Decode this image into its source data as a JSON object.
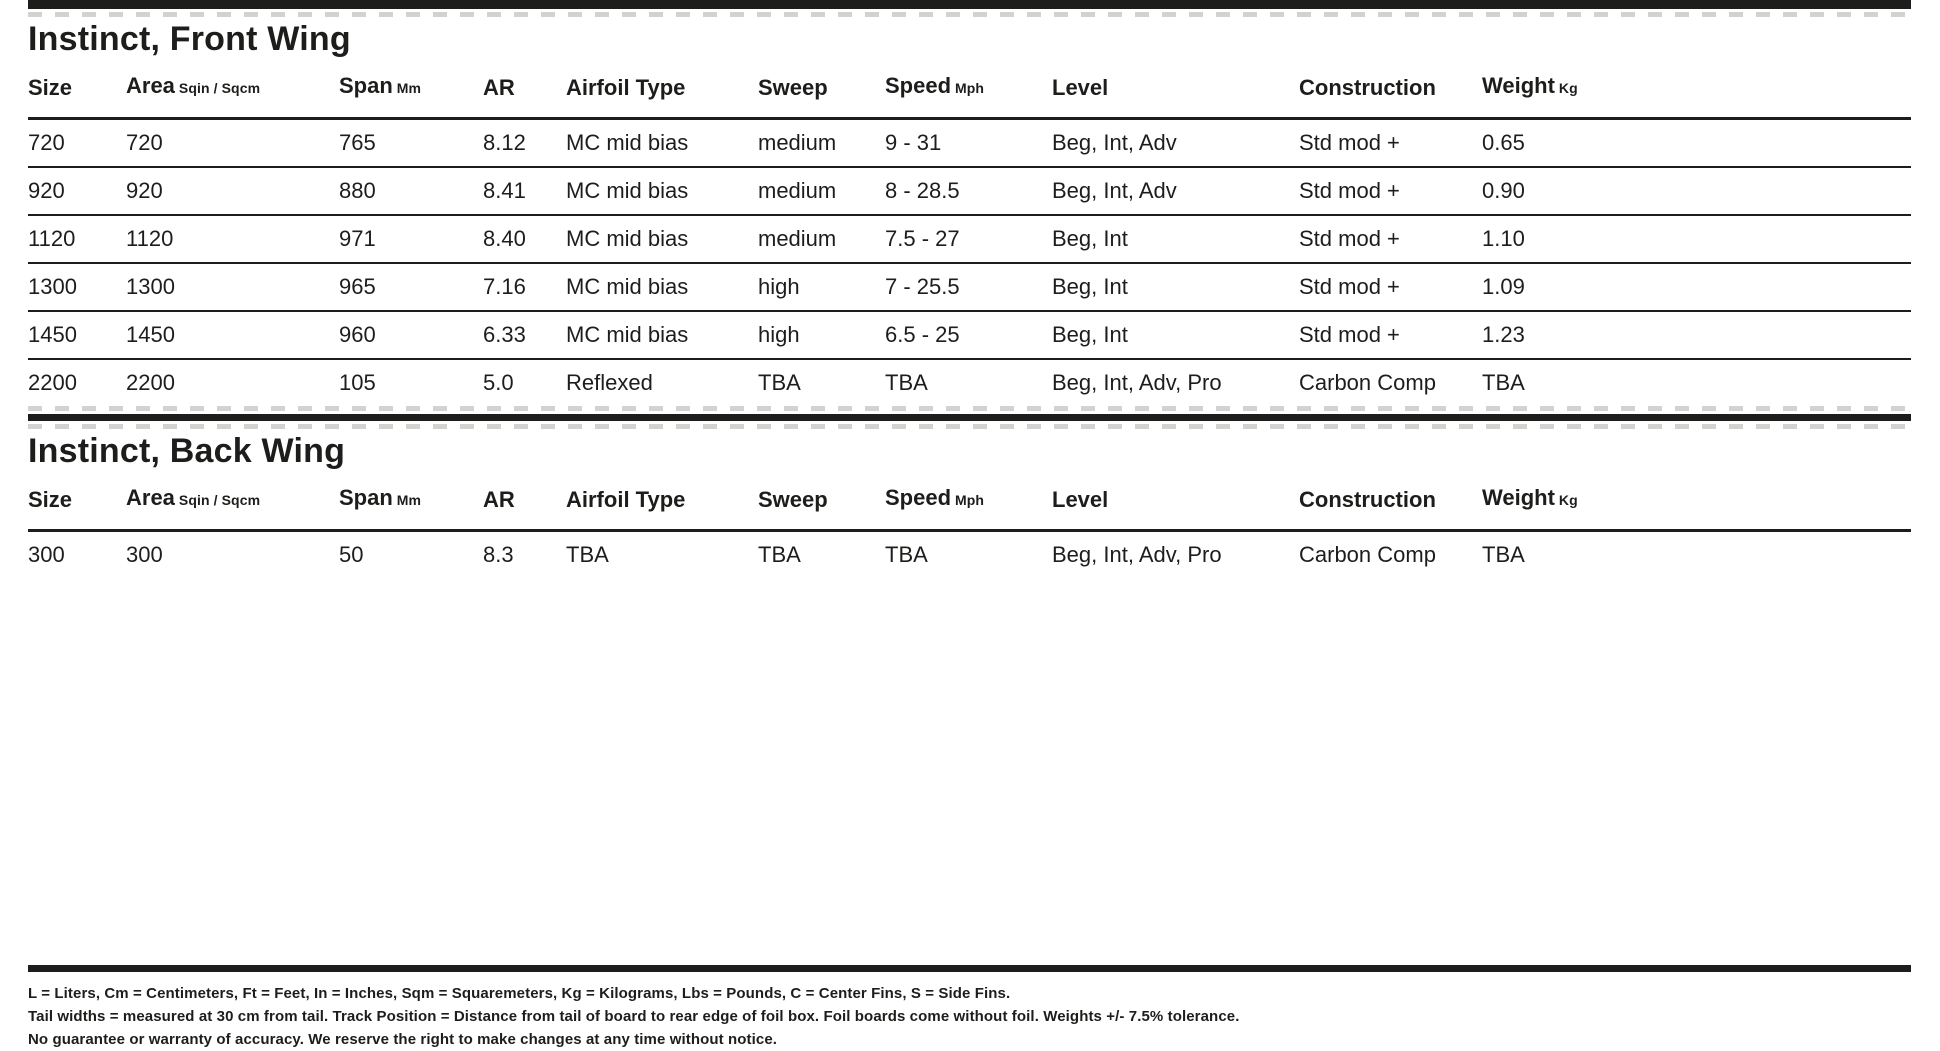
{
  "page": {
    "background": "#ffffff",
    "ink": "#1d1d1b"
  },
  "sections": [
    {
      "title": "Instinct, Front Wing",
      "columns": [
        {
          "label": "Size",
          "unit": ""
        },
        {
          "label": "Area",
          "unit": "Sqin / Sqcm"
        },
        {
          "label": "Span",
          "unit": "Mm"
        },
        {
          "label": "AR",
          "unit": ""
        },
        {
          "label": "Airfoil Type",
          "unit": ""
        },
        {
          "label": "Sweep",
          "unit": ""
        },
        {
          "label": "Speed",
          "unit": "Mph"
        },
        {
          "label": "Level",
          "unit": ""
        },
        {
          "label": "Construction",
          "unit": ""
        },
        {
          "label": "Weight",
          "unit": "Kg"
        }
      ],
      "rows": [
        [
          "720",
          "720",
          "765",
          "8.12",
          "MC mid bias",
          "medium",
          "9 - 31",
          "Beg, Int, Adv",
          "Std mod +",
          "0.65"
        ],
        [
          "920",
          "920",
          "880",
          "8.41",
          "MC mid bias",
          "medium",
          "8 - 28.5",
          "Beg, Int, Adv",
          "Std mod +",
          "0.90"
        ],
        [
          "1120",
          "1120",
          "971",
          "8.40",
          "MC mid bias",
          "medium",
          "7.5 - 27",
          "Beg, Int",
          "Std mod +",
          "1.10"
        ],
        [
          "1300",
          "1300",
          "965",
          "7.16",
          "MC mid bias",
          "high",
          "7 - 25.5",
          "Beg, Int",
          "Std mod +",
          "1.09"
        ],
        [
          "1450",
          "1450",
          "960",
          "6.33",
          "MC mid bias",
          "high",
          "6.5 - 25",
          "Beg, Int",
          "Std mod +",
          "1.23"
        ],
        [
          "2200",
          "2200",
          "105",
          "5.0",
          "Reflexed",
          "TBA",
          "TBA",
          "Beg, Int, Adv, Pro",
          "Carbon Comp",
          "TBA"
        ]
      ]
    },
    {
      "title": "Instinct, Back Wing",
      "columns": [
        {
          "label": "Size",
          "unit": ""
        },
        {
          "label": "Area",
          "unit": "Sqin / Sqcm"
        },
        {
          "label": "Span",
          "unit": "Mm"
        },
        {
          "label": "AR",
          "unit": ""
        },
        {
          "label": "Airfoil Type",
          "unit": ""
        },
        {
          "label": "Sweep",
          "unit": ""
        },
        {
          "label": "Speed",
          "unit": "Mph"
        },
        {
          "label": "Level",
          "unit": ""
        },
        {
          "label": "Construction",
          "unit": ""
        },
        {
          "label": "Weight",
          "unit": "Kg"
        }
      ],
      "rows": [
        [
          "300",
          "300",
          "50",
          "8.3",
          "TBA",
          "TBA",
          "TBA",
          "Beg, Int, Adv, Pro",
          "Carbon Comp",
          "TBA"
        ]
      ]
    }
  ],
  "footer": {
    "lines": [
      "L = Liters, Cm = Centimeters, Ft = Feet, In = Inches, Sqm = Squaremeters, Kg = Kilograms, Lbs = Pounds, C = Center Fins, S = Side Fins.",
      "Tail widths = measured at 30 cm from tail. Track Position = Distance from tail of board to rear edge of foil box. Foil boards come without foil. Weights +/- 7.5% tolerance.",
      "No guarantee or warranty of accuracy. We reserve the right to make changes at any time without notice."
    ]
  }
}
